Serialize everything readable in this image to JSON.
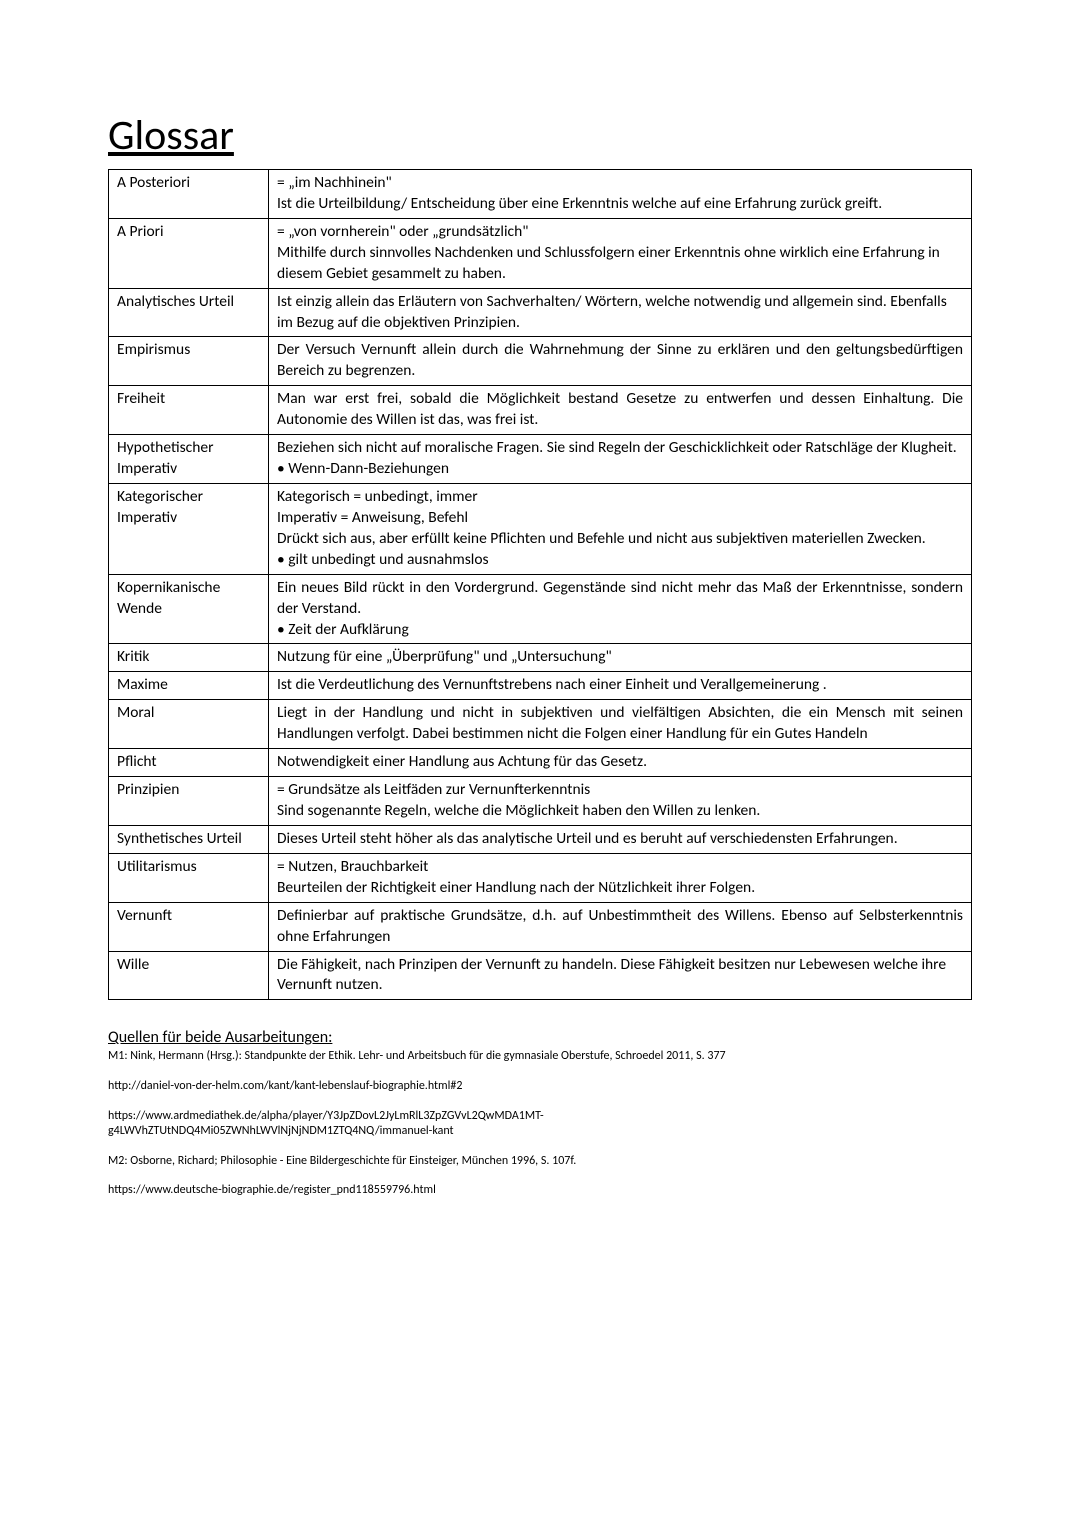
{
  "title": "Glossar",
  "glossary": [
    {
      "term": "A Posteriori",
      "lines": [
        "= „im Nachhinein\"",
        "Ist die Urteilbildung/ Entscheidung über eine Erkenntnis welche auf eine Erfahrung zurück greift."
      ]
    },
    {
      "term": "A Priori",
      "lines": [
        "= „von vornherein\" oder „grundsätzlich\"",
        "Mithilfe durch sinnvolles Nachdenken und Schlussfolgern einer Erkenntnis ohne wirklich eine Erfahrung in diesem Gebiet gesammelt zu haben."
      ]
    },
    {
      "term": "Analytisches Urteil",
      "lines": [
        "Ist einzig allein das Erläutern von Sachverhalten/ Wörtern, welche notwendig und allgemein sind. Ebenfalls im Bezug auf die objektiven Prinzipien."
      ]
    },
    {
      "term": "Empirismus",
      "lines": [
        "Der Versuch Vernunft allein durch die Wahrnehmung der Sinne zu erklären und den geltungsbedürftigen Bereich zu begrenzen."
      ],
      "justify": true
    },
    {
      "term": "Freiheit",
      "lines": [
        "Man war erst frei, sobald die Möglichkeit bestand Gesetze zu entwerfen und dessen Einhaltung. Die Autonomie des Willen ist das, was frei ist."
      ],
      "justify": true
    },
    {
      "term": "Hypothetischer Imperativ",
      "lines": [
        "Beziehen sich nicht auf moralische Fragen. Sie sind Regeln der Geschicklichkeit oder Ratschläge der Klugheit.",
        "• Wenn-Dann-Beziehungen"
      ],
      "justify": true
    },
    {
      "term": "Kategorischer Imperativ",
      "lines": [
        "Kategorisch = unbedingt, immer",
        "Imperativ = Anweisung, Befehl",
        "Drückt sich aus, aber erfüllt keine Pflichten und Befehle und  nicht aus subjektiven materiellen Zwecken.",
        "• gilt unbedingt und ausnahmslos"
      ]
    },
    {
      "term": "Kopernikanische Wende",
      "lines": [
        "Ein neues Bild rückt in den Vordergrund. Gegenstände sind nicht mehr das Maß der Erkenntnisse, sondern der Verstand.",
        "• Zeit der Aufklärung"
      ],
      "justify": true
    },
    {
      "term": "Kritik",
      "lines": [
        "Nutzung für eine „Überprüfung\" und „Untersuchung\""
      ]
    },
    {
      "term": "Maxime",
      "lines": [
        "Ist die Verdeutlichung des Vernunftstrebens nach einer Einheit und Verallgemeinerung ."
      ],
      "justify": true
    },
    {
      "term": "Moral",
      "lines": [
        "Liegt in der Handlung und nicht in subjektiven und vielfältigen Absichten, die ein Mensch mit seinen Handlungen verfolgt. Dabei bestimmen nicht die Folgen einer Handlung für ein Gutes Handeln"
      ],
      "justify": true
    },
    {
      "term": "Pflicht",
      "lines": [
        "Notwendigkeit einer Handlung aus Achtung für das Gesetz."
      ]
    },
    {
      "term": "Prinzipien",
      "lines": [
        "= Grundsätze als Leitfäden zur Vernunfterkenntnis",
        "Sind sogenannte Regeln, welche die Möglichkeit haben den Willen zu lenken."
      ]
    },
    {
      "term": "Synthetisches Urteil",
      "lines": [
        "Dieses Urteil steht höher als das analytische Urteil und es beruht auf verschiedensten Erfahrungen."
      ],
      "justify": true
    },
    {
      "term": "Utilitarismus",
      "lines": [
        "= Nutzen, Brauchbarkeit",
        "Beurteilen der Richtigkeit einer Handlung nach der Nützlichkeit ihrer Folgen."
      ]
    },
    {
      "term": "Vernunft",
      "lines": [
        "Definierbar auf praktische Grundsätze, d.h. auf Unbestimmtheit des Willens. Ebenso auf Selbsterkenntnis ohne Erfahrungen"
      ],
      "justify": true
    },
    {
      "term": "Wille",
      "lines": [
        "Die Fähigkeit, nach Prinzipen der Vernunft zu handeln. Diese Fähigkeit besitzen nur Lebewesen welche ihre Vernunft nutzen."
      ]
    }
  ],
  "sources": {
    "heading": "Quellen für beide Ausarbeitungen:",
    "entries": [
      "M1: Nink, Hermann (Hrsg.): Standpunkte der Ethik. Lehr- und Arbeitsbuch für die gymnasiale Oberstufe, Schroedel 2011, S. 377",
      "http://daniel-von-der-helm.com/kant/kant-lebenslauf-biographie.html#2",
      " https://www.ardmediathek.de/alpha/player/Y3JpZDovL2JyLmRlL3ZpZGVvL2QwMDA1MT-g4LWVhZTUtNDQ4Mi05ZWNhLWVlNjNjNDM1ZTQ4NQ/immanuel-kant",
      "M2: Osborne, Richard; Philosophie - Eine Bildergeschichte für Einsteiger, München 1996, S. 107f.",
      "https://www.deutsche-biographie.de/register_pnd118559796.html"
    ]
  }
}
